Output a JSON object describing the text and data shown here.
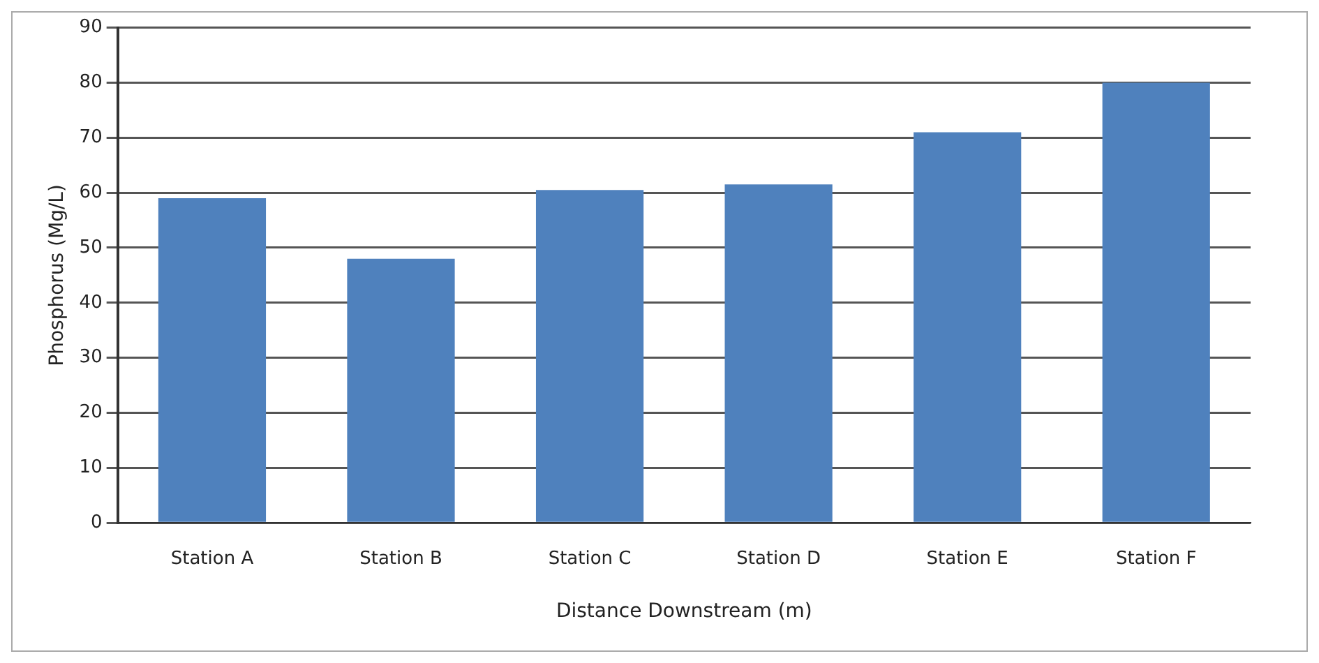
{
  "chart_data": {
    "type": "bar",
    "xlabel": "Distance Downstream (m)",
    "ylabel": "Phosphorus (Mg/L)",
    "categories": [
      "Station A",
      "Station B",
      "Station C",
      "Station D",
      "Station E",
      "Station F"
    ],
    "values": [
      59,
      48,
      60.5,
      61.5,
      71,
      80
    ],
    "color": "#4f81bd",
    "ylim": [
      0,
      90
    ],
    "yticks": [
      0,
      10,
      20,
      30,
      40,
      50,
      60,
      70,
      80,
      90
    ],
    "grid": "y",
    "legend": false
  }
}
